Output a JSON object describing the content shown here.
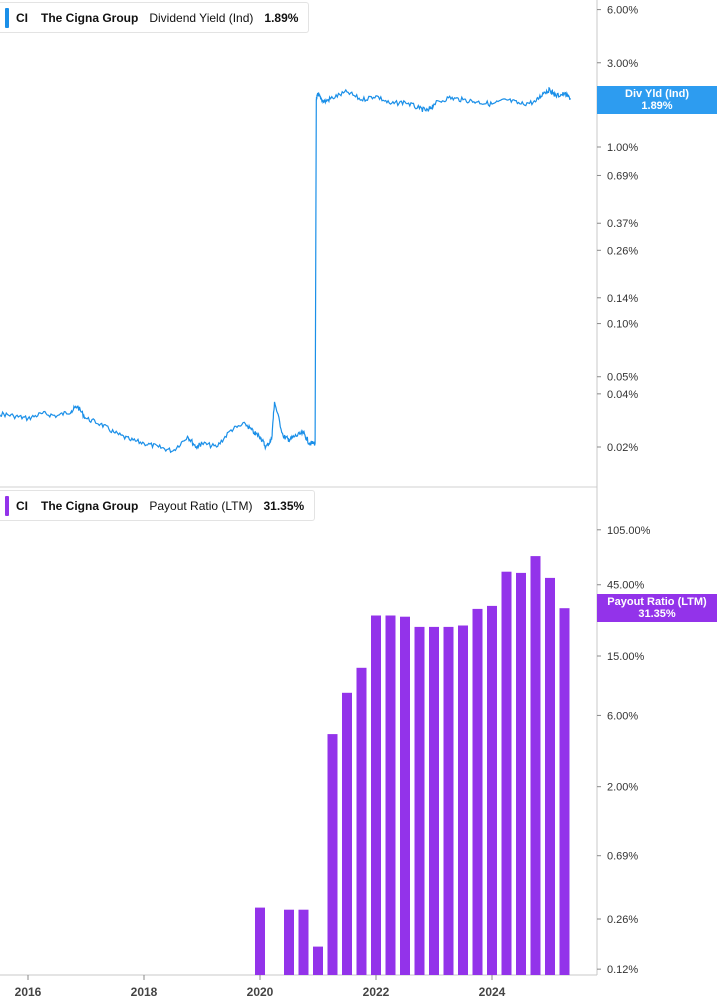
{
  "legends": {
    "top": {
      "ticker": "CI",
      "company": "The Cigna Group",
      "metric": "Dividend Yield (Ind)",
      "value": "1.89%",
      "color": "#1a8fe8"
    },
    "bottom": {
      "ticker": "CI",
      "company": "The Cigna Group",
      "metric": "Payout Ratio (LTM)",
      "value": "31.35%",
      "color": "#9333ea"
    }
  },
  "tags": {
    "top": {
      "label": "Div Yld (Ind)",
      "value": "1.89%",
      "color": "#2d9cf0"
    },
    "bottom": {
      "label": "Payout Ratio (LTM)",
      "value": "31.35%",
      "color": "#9333ea"
    }
  },
  "chart_data": [
    {
      "type": "line",
      "scale": "log",
      "series": [
        {
          "name": "Dividend Yield (Ind)",
          "color": "#1a8fe8",
          "x": [
            2015.0,
            2015.25,
            2015.5,
            2015.75,
            2016.0,
            2016.25,
            2016.5,
            2016.75,
            2016.85,
            2017.0,
            2017.25,
            2017.5,
            2017.75,
            2018.0,
            2018.25,
            2018.5,
            2018.75,
            2018.9,
            2019.0,
            2019.25,
            2019.5,
            2019.75,
            2019.9,
            2020.0,
            2020.1,
            2020.2,
            2020.25,
            2020.4,
            2020.5,
            2020.6,
            2020.75,
            2020.85,
            2020.95,
            2020.97,
            2021.0,
            2021.02,
            2021.1,
            2021.25,
            2021.5,
            2021.75,
            2022.0,
            2022.25,
            2022.5,
            2022.75,
            2022.9,
            2023.0,
            2023.25,
            2023.5,
            2023.75,
            2024.0,
            2024.25,
            2024.5,
            2024.75,
            2024.9,
            2025.0,
            2025.1,
            2025.25,
            2025.35
          ],
          "values": [
            0.028,
            0.029,
            0.031,
            0.03,
            0.029,
            0.031,
            0.03,
            0.032,
            0.034,
            0.029,
            0.027,
            0.024,
            0.022,
            0.021,
            0.02,
            0.019,
            0.023,
            0.02,
            0.021,
            0.02,
            0.025,
            0.027,
            0.024,
            0.023,
            0.02,
            0.022,
            0.036,
            0.023,
            0.022,
            0.023,
            0.024,
            0.021,
            0.021,
            1.85,
            2.0,
            1.95,
            1.8,
            1.9,
            2.05,
            1.85,
            1.95,
            1.75,
            1.8,
            1.65,
            1.6,
            1.75,
            1.9,
            1.85,
            1.8,
            1.75,
            1.85,
            1.75,
            1.8,
            2.05,
            2.1,
            1.95,
            2.0,
            1.89
          ]
        }
      ],
      "y_ticks": [
        "6.00%",
        "3.00%",
        "2.%",
        "1.00%",
        "0.69%",
        "0.37%",
        "0.26%",
        "0.14%",
        "0.10%",
        "0.05%",
        "0.04%",
        "0.02%"
      ]
    },
    {
      "type": "bar",
      "scale": "log",
      "series": [
        {
          "name": "Payout Ratio (LTM)",
          "color": "#9333ea",
          "x": [
            2020.0,
            2020.5,
            2020.75,
            2021.0,
            2021.25,
            2021.5,
            2021.75,
            2022.0,
            2022.25,
            2022.5,
            2022.75,
            2023.0,
            2023.25,
            2023.5,
            2023.75,
            2024.0,
            2024.25,
            2024.5,
            2024.75,
            2025.0,
            2025.25
          ],
          "values": [
            0.31,
            0.3,
            0.3,
            0.17,
            4.5,
            8.5,
            12.5,
            28.0,
            28.0,
            27.5,
            23.5,
            23.5,
            23.5,
            24.0,
            31.0,
            32.5,
            55.0,
            54.0,
            70.0,
            50.0,
            31.35
          ]
        }
      ],
      "y_ticks": [
        "105.00%",
        "45.00%",
        "15.00%",
        "6.00%",
        "2.00%",
        "0.69%",
        "0.26%",
        "0.12%"
      ]
    }
  ],
  "x_axis": {
    "ticks": [
      "2016",
      "2018",
      "2020",
      "2022",
      "2024"
    ]
  }
}
